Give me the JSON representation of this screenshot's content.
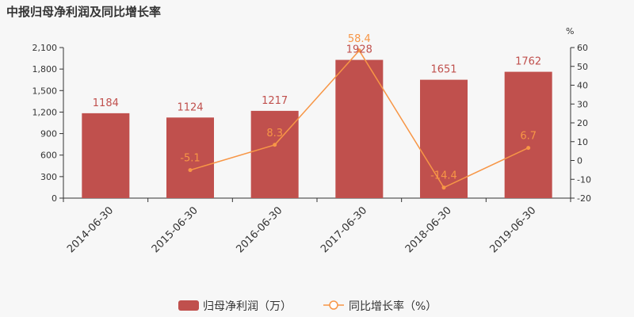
{
  "chart_data": {
    "type": "bar+line",
    "title": "中报归母净利润及同比增长率",
    "categories": [
      "2014-06-30",
      "2015-06-30",
      "2016-06-30",
      "2017-06-30",
      "2018-06-30",
      "2019-06-30"
    ],
    "series": [
      {
        "name": "归母净利润（万）",
        "type": "bar",
        "axis": "left",
        "values": [
          1184,
          1124,
          1217,
          1928,
          1651,
          1762
        ],
        "color": "#c0504d"
      },
      {
        "name": "同比增长率（%）",
        "type": "line",
        "axis": "right",
        "values": [
          null,
          -5.1,
          8.3,
          58.4,
          -14.4,
          6.7
        ],
        "color": "#f79646"
      }
    ],
    "y_left": {
      "ticks": [
        0,
        300,
        600,
        900,
        "1,200",
        "1,500",
        "1,800",
        "2,100"
      ],
      "ylim": [
        0,
        2100
      ]
    },
    "y_right": {
      "unit": "%",
      "ticks": [
        -20,
        -10,
        0,
        10,
        20,
        30,
        40,
        50,
        60
      ],
      "ylim": [
        -20,
        60
      ]
    },
    "legend_position": "bottom-center",
    "grid": false
  }
}
